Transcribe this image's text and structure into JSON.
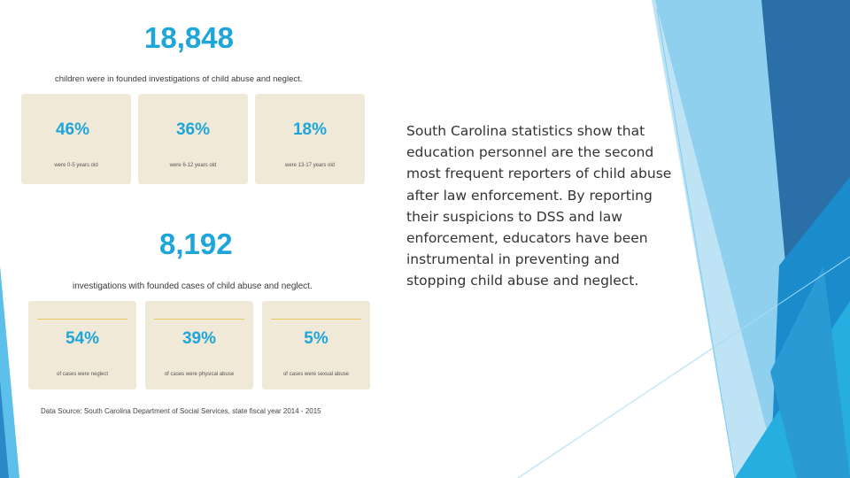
{
  "infographic": {
    "total_children": "18,848",
    "total_children_caption": "children were in founded investigations of child abuse and neglect.",
    "age_groups": [
      {
        "percent": "46%",
        "label": "were 0-5 years old"
      },
      {
        "percent": "36%",
        "label": "were 6-12 years old"
      },
      {
        "percent": "18%",
        "label": "were 13-17 years old"
      }
    ],
    "total_investigations": "8,192",
    "total_investigations_caption": "investigations with founded cases of child abuse and neglect.",
    "case_types": [
      {
        "percent": "54%",
        "label": "of cases were neglect"
      },
      {
        "percent": "39%",
        "label": "of cases were physical abuse"
      },
      {
        "percent": "5%",
        "label": "of cases were sexual abuse"
      }
    ],
    "source": "Data Source: South Carolina Department of Social Services, state fiscal year 2014 - 2015"
  },
  "body_text": "South Carolina statistics show that education personnel are the second most frequent reporters of child abuse after law enforcement. By reporting their suspicions to DSS and law enforcement, educators have been instrumental in preventing and stopping child abuse and neglect.",
  "colors": {
    "accent": "#1ea6da",
    "card_background": "#f1e9d8",
    "card_rule": "#e6c860",
    "dark_blue": "#2a6fa8",
    "light_blue": "#bde3f5"
  }
}
